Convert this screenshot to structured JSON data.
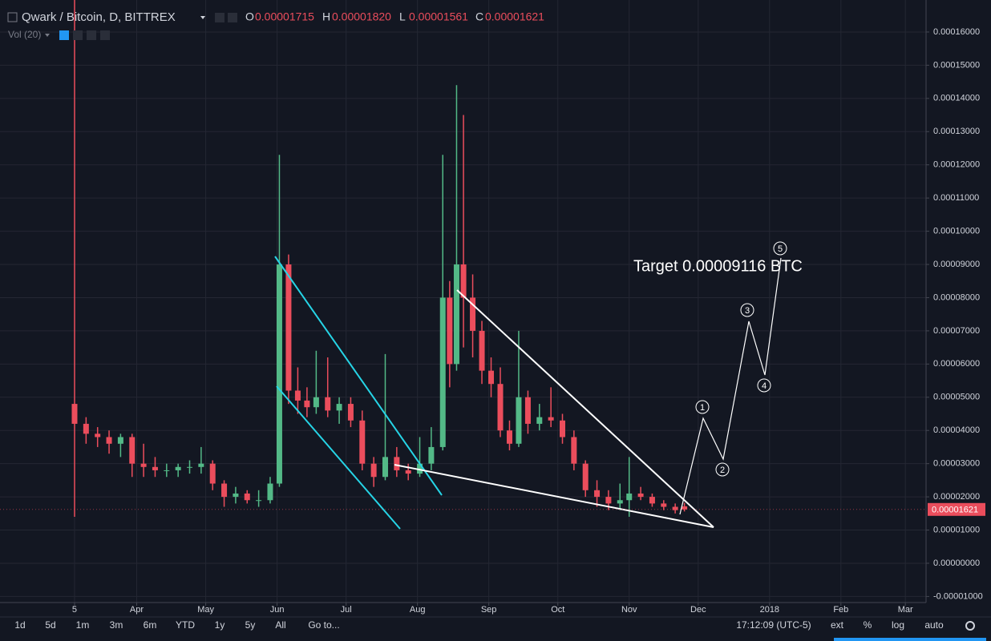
{
  "header": {
    "title": "Qwark / Bitcoin, D, BITTREX",
    "ohlc": [
      {
        "key": "O",
        "value": "0.00001715"
      },
      {
        "key": "H",
        "value": "0.00001820"
      },
      {
        "key": "L",
        "value": "0.00001561"
      },
      {
        "key": "C",
        "value": "0.00001621"
      }
    ],
    "indicator": "Vol (20)"
  },
  "chart_data": {
    "type": "candlestick",
    "x": [
      0,
      5,
      10,
      15,
      20,
      25,
      30,
      35,
      40,
      45,
      50,
      55,
      60,
      65,
      70,
      75,
      80,
      85,
      89,
      93,
      97,
      101,
      105,
      110,
      115,
      120,
      125,
      130,
      135,
      140,
      145,
      150,
      155,
      160,
      163,
      166,
      169,
      173,
      177,
      181,
      185,
      189,
      193,
      197,
      202,
      207,
      212,
      217,
      222,
      227,
      232,
      237,
      241,
      246,
      251,
      256,
      261,
      265
    ],
    "open": [
      4.8e-05,
      4.2e-05,
      3.9e-05,
      3.8e-05,
      3.6e-05,
      3.8e-05,
      3e-05,
      2.9e-05,
      2.8e-05,
      2.8e-05,
      2.9e-05,
      2.9e-05,
      3e-05,
      2.4e-05,
      2e-05,
      2.1e-05,
      1.9e-05,
      1.9e-05,
      2.4e-05,
      9e-05,
      5.2e-05,
      4.9e-05,
      4.7e-05,
      5e-05,
      4.6e-05,
      4.8e-05,
      4.3e-05,
      3e-05,
      2.6e-05,
      3.2e-05,
      2.8e-05,
      2.7e-05,
      3e-05,
      3.5e-05,
      8e-05,
      6e-05,
      9e-05,
      8e-05,
      7e-05,
      5.8e-05,
      5.4e-05,
      4e-05,
      3.6e-05,
      5e-05,
      4.2e-05,
      4.4e-05,
      4.3e-05,
      3.8e-05,
      3e-05,
      2.2e-05,
      2e-05,
      1.8e-05,
      1.9e-05,
      2.1e-05,
      2e-05,
      1.8e-05,
      1.7e-05,
      1.715e-05
    ],
    "high": [
      0.00017,
      4.4e-05,
      4.1e-05,
      4e-05,
      3.9e-05,
      3.9e-05,
      3.6e-05,
      3.2e-05,
      3e-05,
      3e-05,
      3.1e-05,
      3.5e-05,
      3.1e-05,
      2.5e-05,
      2.3e-05,
      2.2e-05,
      2.2e-05,
      2.6e-05,
      0.000123,
      9.3e-05,
      5.9e-05,
      5.3e-05,
      6.4e-05,
      6.2e-05,
      5e-05,
      5e-05,
      4.6e-05,
      3.2e-05,
      6.3e-05,
      3.5e-05,
      3e-05,
      3.8e-05,
      4.1e-05,
      0.000123,
      8.5e-05,
      0.000144,
      0.000135,
      8.7e-05,
      7.3e-05,
      6.2e-05,
      5.9e-05,
      4.3e-05,
      7e-05,
      5.2e-05,
      4.8e-05,
      5.3e-05,
      4.5e-05,
      4e-05,
      3.1e-05,
      2.5e-05,
      2.2e-05,
      2.4e-05,
      3.2e-05,
      2.3e-05,
      2.1e-05,
      1.9e-05,
      1.8e-05,
      1.82e-05
    ],
    "low": [
      1.4e-05,
      3.6e-05,
      3.5e-05,
      3.3e-05,
      3.2e-05,
      2.6e-05,
      2.6e-05,
      2.6e-05,
      2.6e-05,
      2.6e-05,
      2.7e-05,
      2.7e-05,
      2.2e-05,
      1.7e-05,
      1.8e-05,
      1.8e-05,
      1.7e-05,
      1.8e-05,
      2.3e-05,
      4.8e-05,
      4.5e-05,
      4.4e-05,
      4.5e-05,
      4.4e-05,
      4.2e-05,
      4.1e-05,
      2.8e-05,
      2.3e-05,
      2.5e-05,
      2.6e-05,
      2.5e-05,
      2.6e-05,
      2.8e-05,
      3.4e-05,
      5.3e-05,
      5.8e-05,
      6.5e-05,
      6.2e-05,
      5.4e-05,
      5e-05,
      3.8e-05,
      3.4e-05,
      3.5e-05,
      3.9e-05,
      4e-05,
      4.1e-05,
      3.6e-05,
      2.8e-05,
      2e-05,
      1.7e-05,
      1.6e-05,
      1.6e-05,
      1.4e-05,
      1.9e-05,
      1.7e-05,
      1.6e-05,
      1.5e-05,
      1.561e-05
    ],
    "close": [
      4.2e-05,
      3.9e-05,
      3.8e-05,
      3.6e-05,
      3.8e-05,
      3e-05,
      2.9e-05,
      2.8e-05,
      2.8e-05,
      2.9e-05,
      2.9e-05,
      3e-05,
      2.4e-05,
      2e-05,
      2.1e-05,
      1.9e-05,
      1.9e-05,
      2.4e-05,
      9e-05,
      5.2e-05,
      4.9e-05,
      4.7e-05,
      5e-05,
      4.6e-05,
      4.8e-05,
      4.3e-05,
      3e-05,
      2.6e-05,
      3.2e-05,
      2.8e-05,
      2.7e-05,
      3e-05,
      3.5e-05,
      8e-05,
      6e-05,
      9e-05,
      8e-05,
      7e-05,
      5.8e-05,
      5.4e-05,
      4e-05,
      3.6e-05,
      5e-05,
      4.2e-05,
      4.4e-05,
      4.3e-05,
      3.8e-05,
      3e-05,
      2.2e-05,
      2e-05,
      1.8e-05,
      1.9e-05,
      2.1e-05,
      2e-05,
      1.8e-05,
      1.7e-05,
      1.6e-05,
      1.621e-05
    ],
    "colors": {
      "up": "#53b987",
      "down": "#eb4d5c"
    },
    "xlim": [
      -32.4,
      370
    ],
    "xticks": [
      {
        "value": 0,
        "label": "5"
      },
      {
        "value": 27,
        "label": "Apr"
      },
      {
        "value": 57,
        "label": "May"
      },
      {
        "value": 88,
        "label": "Jun"
      },
      {
        "value": 118,
        "label": "Jul"
      },
      {
        "value": 149,
        "label": "Aug"
      },
      {
        "value": 180,
        "label": "Sep"
      },
      {
        "value": 210,
        "label": "Oct"
      },
      {
        "value": 241,
        "label": "Nov"
      },
      {
        "value": 271,
        "label": "Dec"
      },
      {
        "value": 302,
        "label": "2018"
      },
      {
        "value": 333,
        "label": "Feb"
      },
      {
        "value": 361,
        "label": "Mar"
      }
    ],
    "ylim": [
      -1.2e-05,
      0.000168
    ],
    "yticks": [
      {
        "value": -1e-05,
        "label": "-0.00001000"
      },
      {
        "value": 0,
        "label": "0.00000000"
      },
      {
        "value": 1e-05,
        "label": "0.00001000"
      },
      {
        "value": 2e-05,
        "label": "0.00002000"
      },
      {
        "value": 3e-05,
        "label": "0.00003000"
      },
      {
        "value": 4e-05,
        "label": "0.00004000"
      },
      {
        "value": 5e-05,
        "label": "0.00005000"
      },
      {
        "value": 6e-05,
        "label": "0.00006000"
      },
      {
        "value": 7e-05,
        "label": "0.00007000"
      },
      {
        "value": 8e-05,
        "label": "0.00008000"
      },
      {
        "value": 9e-05,
        "label": "0.00009000"
      },
      {
        "value": 0.0001,
        "label": "0.00010000"
      },
      {
        "value": 0.00011,
        "label": "0.00011000"
      },
      {
        "value": 0.00012,
        "label": "0.00012000"
      },
      {
        "value": 0.00013,
        "label": "0.00013000"
      },
      {
        "value": 0.00014,
        "label": "0.00014000"
      },
      {
        "value": 0.00015,
        "label": "0.00015000"
      },
      {
        "value": 0.00016,
        "label": "0.00016000"
      }
    ],
    "last_price": {
      "value": 1.621e-05,
      "label": "0.00001621"
    },
    "grid": true,
    "annotations": {
      "target": "Target 0.00009116 BTC",
      "waves": [
        "1",
        "2",
        "3",
        "4",
        "5"
      ]
    }
  },
  "toolbar": {
    "ranges": [
      "1d",
      "5d",
      "1m",
      "3m",
      "6m",
      "YTD",
      "1y",
      "5y",
      "All"
    ],
    "goto": "Go to...",
    "time": "17:12:09 (UTC-5)",
    "options": [
      "ext",
      "%",
      "log",
      "auto"
    ]
  }
}
